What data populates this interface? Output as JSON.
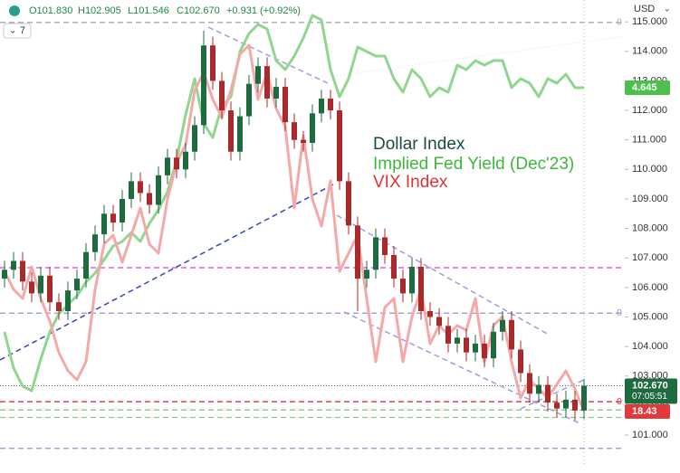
{
  "chart_data": {
    "type": "candlestick",
    "header": {
      "open": "O101.830",
      "high": "H102.905",
      "low": "L101.546",
      "close": "C102.670",
      "change": "+0.931 (+0.92%)"
    },
    "currency": "USD",
    "interval": "7",
    "name": "Dollar Index",
    "up_color": "#1f6b40",
    "down_color": "#a82a2a",
    "legend_color": "#1d4a3a",
    "open": [
      106.3,
      106.6,
      106.9,
      106.2,
      105.8,
      106.4,
      105.5,
      105.2,
      105.9,
      106.3,
      107.2,
      107.8,
      108.5,
      108.2,
      109.0,
      109.6,
      109.2,
      108.8,
      109.8,
      110.4,
      110.0,
      110.6,
      111.5,
      114.2,
      113.0,
      112.0,
      110.6,
      111.8,
      112.9,
      113.5,
      112.4,
      112.8,
      111.6,
      111.0,
      110.9,
      111.9,
      112.4,
      112.0,
      109.6,
      108.1,
      106.3,
      106.6,
      107.7,
      107.1,
      106.3,
      105.8,
      106.7,
      105.2,
      105.0,
      104.7,
      104.1,
      104.3,
      103.8,
      104.1,
      103.6,
      104.5,
      104.9,
      103.9,
      103.1,
      102.4,
      102.7,
      102.1,
      101.9,
      102.2,
      101.83
    ],
    "high": [
      106.9,
      107.2,
      107.2,
      106.5,
      106.7,
      106.7,
      105.8,
      106.2,
      106.6,
      107.5,
      108.1,
      108.8,
      108.8,
      109.3,
      109.9,
      109.9,
      109.5,
      110.1,
      110.7,
      110.7,
      110.9,
      111.8,
      114.7,
      114.5,
      113.3,
      112.3,
      112.1,
      113.2,
      113.8,
      113.8,
      113.1,
      113.1,
      111.9,
      111.3,
      112.2,
      112.7,
      112.7,
      112.3,
      109.9,
      108.4,
      106.9,
      108.0,
      108.0,
      107.4,
      106.6,
      107.0,
      107.0,
      105.5,
      105.3,
      105.0,
      104.6,
      104.6,
      104.4,
      104.4,
      104.8,
      105.2,
      105.2,
      104.2,
      103.4,
      103.0,
      103.0,
      102.4,
      102.5,
      102.5,
      102.905
    ],
    "low": [
      106.0,
      106.3,
      105.9,
      105.5,
      105.5,
      105.2,
      104.9,
      104.9,
      105.6,
      106.0,
      106.9,
      107.5,
      107.9,
      107.9,
      108.7,
      108.9,
      108.5,
      108.5,
      109.5,
      109.7,
      109.7,
      110.3,
      111.2,
      112.7,
      111.7,
      110.3,
      110.3,
      111.5,
      112.6,
      112.1,
      112.1,
      111.3,
      110.7,
      110.6,
      110.6,
      111.6,
      111.7,
      109.3,
      107.8,
      105.2,
      106.0,
      106.3,
      106.8,
      106.0,
      105.5,
      105.5,
      104.9,
      104.7,
      104.4,
      103.8,
      103.8,
      103.5,
      103.5,
      103.3,
      103.3,
      104.2,
      103.6,
      102.8,
      102.1,
      102.1,
      101.8,
      101.6,
      101.6,
      101.5,
      101.546
    ],
    "close": [
      106.6,
      106.9,
      106.2,
      105.8,
      106.4,
      105.5,
      105.2,
      105.9,
      106.3,
      107.2,
      107.8,
      108.5,
      108.2,
      109.0,
      109.6,
      109.2,
      108.8,
      109.8,
      110.4,
      110.0,
      110.6,
      111.5,
      114.2,
      113.0,
      112.0,
      110.6,
      111.8,
      112.9,
      113.5,
      112.4,
      112.8,
      111.6,
      111.0,
      110.9,
      111.9,
      112.4,
      112.0,
      109.6,
      108.1,
      106.3,
      106.6,
      107.7,
      107.1,
      106.3,
      105.8,
      106.7,
      105.2,
      105.0,
      104.7,
      104.1,
      104.3,
      103.8,
      104.1,
      103.6,
      104.5,
      104.9,
      103.9,
      103.1,
      102.4,
      102.7,
      102.1,
      101.9,
      102.2,
      101.83,
      102.67
    ],
    "last_price": {
      "value": 102.67,
      "label": "102.670"
    },
    "countdown": "07:05:51",
    "ylim": [
      99.96,
      115.74
    ],
    "yticks": [
      {
        "value": 101,
        "label": "101.000"
      },
      {
        "value": 102,
        "label": "102.000"
      },
      {
        "value": 103,
        "label": "103.000"
      },
      {
        "value": 104,
        "label": "104.000"
      },
      {
        "value": 105,
        "label": "105.000"
      },
      {
        "value": 106,
        "label": "106.000"
      },
      {
        "value": 107,
        "label": "107.000"
      },
      {
        "value": 108,
        "label": "108.000"
      },
      {
        "value": 109,
        "label": "109.000"
      },
      {
        "value": 110,
        "label": "110.000"
      },
      {
        "value": 111,
        "label": "111.000"
      },
      {
        "value": 112,
        "label": "112.000"
      },
      {
        "value": 113,
        "label": "113.000"
      },
      {
        "value": 114,
        "label": "114.000"
      },
      {
        "value": 115,
        "label": "115.000"
      }
    ],
    "levels": [
      {
        "value": 114.98,
        "label": "0",
        "color": "#aaaaaa"
      },
      {
        "value": 106.67,
        "color": "#e040e0"
      },
      {
        "value": 105.13,
        "label": "0",
        "color": "#9c8fd0"
      },
      {
        "value": 102.13,
        "label": "0",
        "color": "#e03040"
      },
      {
        "value": 101.85,
        "color": "#7fce7f"
      },
      {
        "value": 101.6,
        "color": "#7fce7f"
      },
      {
        "value": 100.55,
        "color": "#9c8fd0"
      }
    ],
    "series": [
      {
        "name": "Implied Fed Yield (Dec'23)",
        "color": "#8fd68f",
        "legend_color": "#3cb83c",
        "label_color": "#4cbf4c",
        "ylim": [
          2.555,
          5.13
        ],
        "last_label": "4.645",
        "values": [
          3.295,
          3.095,
          2.995,
          2.97,
          3.145,
          3.295,
          3.395,
          3.445,
          3.495,
          3.57,
          3.62,
          3.695,
          3.77,
          3.795,
          3.845,
          3.795,
          3.895,
          3.97,
          4.07,
          4.245,
          4.495,
          4.695,
          4.445,
          4.37,
          4.545,
          4.595,
          4.845,
          4.945,
          4.995,
          4.97,
          4.795,
          4.745,
          4.82,
          4.92,
          5.045,
          5.02,
          4.745,
          4.595,
          4.695,
          4.87,
          4.845,
          4.82,
          4.82,
          4.695,
          4.62,
          4.745,
          4.695,
          4.595,
          4.645,
          4.62,
          4.77,
          4.745,
          4.795,
          4.77,
          4.795,
          4.795,
          4.645,
          4.695,
          4.67,
          4.595,
          4.695,
          4.67,
          4.72,
          4.645,
          4.645
        ]
      },
      {
        "name": "VIX Index",
        "color": "#f5a8a8",
        "legend_color": "#e03232",
        "label_color": "#e23a3a",
        "ylim": [
          16.03,
          36.63
        ],
        "last_label": "18.43",
        "values": [
          24.63,
          23.83,
          23.43,
          24.83,
          23.43,
          22.43,
          21.03,
          20.23,
          19.83,
          20.63,
          23.83,
          25.83,
          26.23,
          25.03,
          26.23,
          27.43,
          25.83,
          25.43,
          27.83,
          29.43,
          30.23,
          32.63,
          33.43,
          32.23,
          31.43,
          32.63,
          34.23,
          34.63,
          32.23,
          33.43,
          31.83,
          31.03,
          27.43,
          30.63,
          27.83,
          26.63,
          28.63,
          24.63,
          25.43,
          26.23,
          23.43,
          20.63,
          23.03,
          23.43,
          20.63,
          22.63,
          23.83,
          21.43,
          22.23,
          21.83,
          22.23,
          22.03,
          23.43,
          20.63,
          22.23,
          22.63,
          20.63,
          19.03,
          19.83,
          19.43,
          19.03,
          19.63,
          20.23,
          19.43,
          18.43
        ]
      }
    ]
  }
}
